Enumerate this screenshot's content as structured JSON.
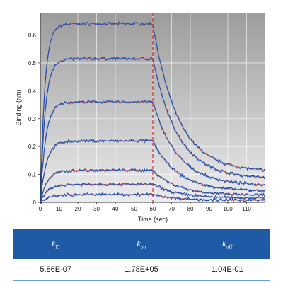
{
  "chart_data": {
    "type": "line",
    "title": "",
    "xlabel": "Time (sec)",
    "ylabel": "Binding (nm)",
    "xlim": [
      0,
      120
    ],
    "ylim": [
      0,
      0.68
    ],
    "x_ticks": [
      "0",
      "10",
      "20",
      "30",
      "40",
      "50",
      "60",
      "70",
      "80",
      "90",
      "100",
      "110"
    ],
    "y_ticks": [
      "0",
      "0.1",
      "0.2",
      "0.3",
      "0.4",
      "0.5",
      "0.6"
    ],
    "grid": true,
    "injection_end_time": 60,
    "series": [
      {
        "plateau": 0.64,
        "end": 0.11
      },
      {
        "plateau": 0.515,
        "end": 0.085
      },
      {
        "plateau": 0.36,
        "end": 0.06
      },
      {
        "plateau": 0.22,
        "end": 0.04
      },
      {
        "plateau": 0.115,
        "end": 0.025
      },
      {
        "plateau": 0.065,
        "end": 0.015
      },
      {
        "plateau": 0.028,
        "end": 0.007
      }
    ],
    "colors": {
      "data": "#1f4fa8",
      "fit": "#e87070",
      "marker": "#d03030"
    }
  },
  "table": {
    "headers": [
      {
        "sym": "k",
        "sub": "D"
      },
      {
        "sym": "k",
        "sub": "on"
      },
      {
        "sym": "k",
        "sub": "off"
      }
    ],
    "values": [
      "5.86E-07",
      "1.78E+05",
      "1.04E-01"
    ]
  }
}
